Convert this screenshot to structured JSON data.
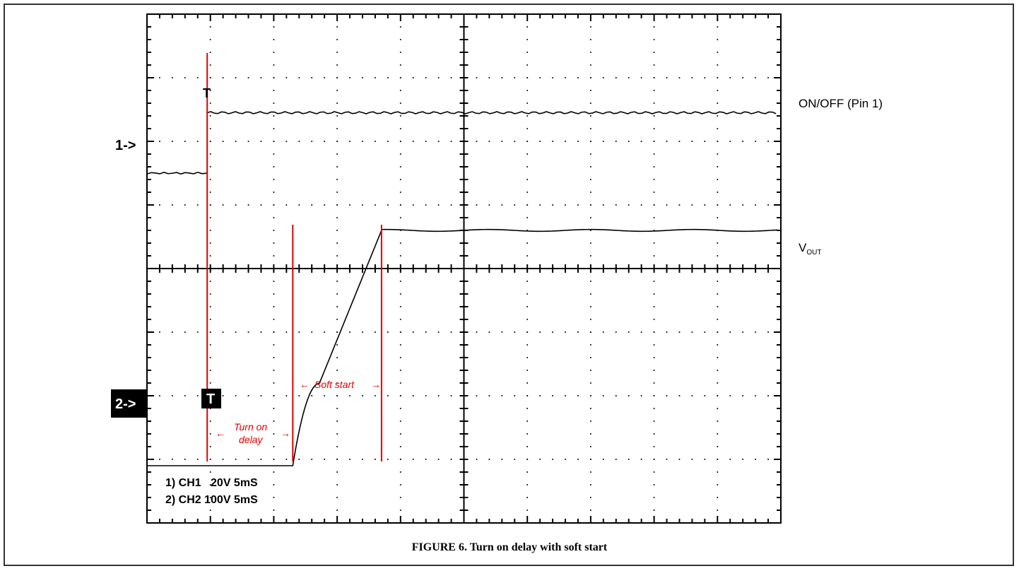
{
  "figure_caption": "FIGURE 6. Turn on delay with soft start",
  "colors": {
    "trace": "#000000",
    "marker": "#e00000",
    "grid": "#000000"
  },
  "chart_data": {
    "type": "line",
    "grid": true,
    "divisions": {
      "x": 10,
      "y": 8
    },
    "channels": [
      {
        "id": "1",
        "marker_label": "1->",
        "name": "ON/OFF (Pin 1)",
        "scale": "20V 5mS",
        "low_div": 1.5,
        "high_div": 2.45,
        "rise_div": 0.95
      },
      {
        "id": "2",
        "marker_label": "2->",
        "name": "VOUT",
        "name_main": "V",
        "name_sub": "OUT",
        "scale": "100V 5mS",
        "low_div": -3.1,
        "high_div": 0.6,
        "start_div": 2.3,
        "end_div": 3.7
      }
    ],
    "scale_lines": [
      "1) CH1   20V 5mS",
      "2) CH2 100V 5mS"
    ],
    "trigger_marker": "T",
    "annotations": {
      "turn_on_delay": [
        "Turn on",
        "delay"
      ],
      "soft_start": "Soft start"
    },
    "marker_lines_div": [
      0.95,
      2.3,
      3.7
    ]
  }
}
